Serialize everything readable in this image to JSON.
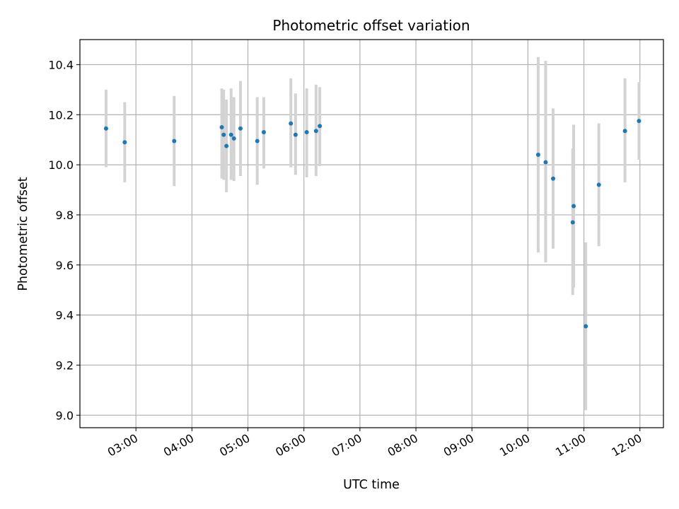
{
  "chart_data": {
    "type": "scatter",
    "title": "Photometric offset variation",
    "xlabel": "UTC time",
    "ylabel": "Photometric offset",
    "grid": true,
    "xlim_hours": [
      2.0,
      12.42
    ],
    "ylim": [
      8.95,
      10.5
    ],
    "x_ticks": [
      {
        "value": 3,
        "label": "03:00"
      },
      {
        "value": 4,
        "label": "04:00"
      },
      {
        "value": 5,
        "label": "05:00"
      },
      {
        "value": 6,
        "label": "06:00"
      },
      {
        "value": 7,
        "label": "07:00"
      },
      {
        "value": 8,
        "label": "08:00"
      },
      {
        "value": 9,
        "label": "09:00"
      },
      {
        "value": 10,
        "label": "10:00"
      },
      {
        "value": 11,
        "label": "11:00"
      },
      {
        "value": 12,
        "label": "12:00"
      }
    ],
    "y_ticks": [
      {
        "value": 9.0,
        "label": "9.0"
      },
      {
        "value": 9.2,
        "label": "9.2"
      },
      {
        "value": 9.4,
        "label": "9.4"
      },
      {
        "value": 9.6,
        "label": "9.6"
      },
      {
        "value": 9.8,
        "label": "9.8"
      },
      {
        "value": 10.0,
        "label": "10.0"
      },
      {
        "value": 10.2,
        "label": "10.2"
      },
      {
        "value": 10.4,
        "label": "10.4"
      }
    ],
    "marker_color": "#1f77b4",
    "errorbar_color": "#d3d3d3",
    "points": [
      {
        "x": "02:28",
        "y": 10.145,
        "yerr_low": 9.99,
        "yerr_high": 10.3
      },
      {
        "x": "02:48",
        "y": 10.09,
        "yerr_low": 9.93,
        "yerr_high": 10.25
      },
      {
        "x": "03:41",
        "y": 10.095,
        "yerr_low": 9.915,
        "yerr_high": 10.275
      },
      {
        "x": "04:32",
        "y": 10.15,
        "yerr_low": 9.945,
        "yerr_high": 10.305
      },
      {
        "x": "04:34",
        "y": 10.12,
        "yerr_low": 9.94,
        "yerr_high": 10.3
      },
      {
        "x": "04:37",
        "y": 10.075,
        "yerr_low": 9.89,
        "yerr_high": 10.26
      },
      {
        "x": "04:42",
        "y": 10.12,
        "yerr_low": 9.94,
        "yerr_high": 10.305
      },
      {
        "x": "04:45",
        "y": 10.105,
        "yerr_low": 9.935,
        "yerr_high": 10.27
      },
      {
        "x": "04:52",
        "y": 10.145,
        "yerr_low": 9.955,
        "yerr_high": 10.335
      },
      {
        "x": "05:10",
        "y": 10.095,
        "yerr_low": 9.92,
        "yerr_high": 10.27
      },
      {
        "x": "05:17",
        "y": 10.13,
        "yerr_low": 9.985,
        "yerr_high": 10.27
      },
      {
        "x": "05:46",
        "y": 10.165,
        "yerr_low": 9.99,
        "yerr_high": 10.345
      },
      {
        "x": "05:51",
        "y": 10.12,
        "yerr_low": 9.96,
        "yerr_high": 10.285
      },
      {
        "x": "06:03",
        "y": 10.13,
        "yerr_low": 9.95,
        "yerr_high": 10.305
      },
      {
        "x": "06:13",
        "y": 10.135,
        "yerr_low": 9.955,
        "yerr_high": 10.32
      },
      {
        "x": "06:17",
        "y": 10.155,
        "yerr_low": 9.995,
        "yerr_high": 10.31
      },
      {
        "x": "10:11",
        "y": 10.04,
        "yerr_low": 9.65,
        "yerr_high": 10.43
      },
      {
        "x": "10:19",
        "y": 10.01,
        "yerr_low": 9.61,
        "yerr_high": 10.415
      },
      {
        "x": "10:27",
        "y": 9.945,
        "yerr_low": 9.665,
        "yerr_high": 10.225
      },
      {
        "x": "10:48",
        "y": 9.77,
        "yerr_low": 9.48,
        "yerr_high": 10.065
      },
      {
        "x": "10:49",
        "y": 9.835,
        "yerr_low": 9.51,
        "yerr_high": 10.16
      },
      {
        "x": "11:02",
        "y": 9.355,
        "yerr_low": 9.02,
        "yerr_high": 9.69
      },
      {
        "x": "11:16",
        "y": 9.92,
        "yerr_low": 9.675,
        "yerr_high": 10.165
      },
      {
        "x": "11:44",
        "y": 10.135,
        "yerr_low": 9.93,
        "yerr_high": 10.345
      },
      {
        "x": "11:59",
        "y": 10.175,
        "yerr_low": 10.02,
        "yerr_high": 10.33
      }
    ]
  }
}
